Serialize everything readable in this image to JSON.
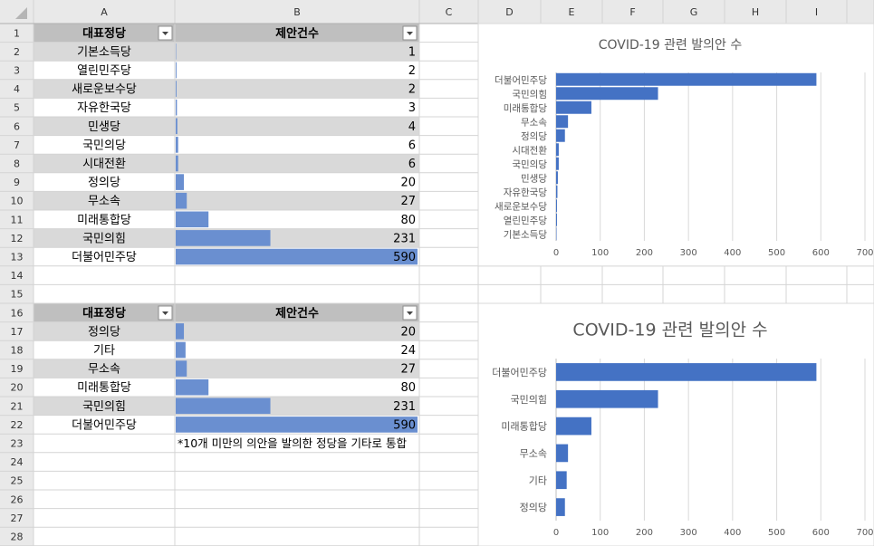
{
  "columns": [
    "A",
    "B",
    "C",
    "D",
    "E",
    "F",
    "G",
    "H",
    "I"
  ],
  "rows": [
    1,
    2,
    3,
    4,
    5,
    6,
    7,
    8,
    9,
    10,
    11,
    12,
    13,
    14,
    15,
    16,
    17,
    18,
    19,
    20,
    21,
    22,
    23,
    24,
    25,
    26,
    27,
    28
  ],
  "table1": {
    "headers": [
      "대표정당",
      "제안건수"
    ],
    "rows": [
      [
        "기본소득당",
        1
      ],
      [
        "열린민주당",
        2
      ],
      [
        "새로운보수당",
        2
      ],
      [
        "자유한국당",
        3
      ],
      [
        "민생당",
        4
      ],
      [
        "국민의당",
        6
      ],
      [
        "시대전환",
        6
      ],
      [
        "정의당",
        20
      ],
      [
        "무소속",
        27
      ],
      [
        "미래통합당",
        80
      ],
      [
        "국민의힘",
        231
      ],
      [
        "더불어민주당",
        590
      ]
    ]
  },
  "table2": {
    "headers": [
      "대표정당",
      "제안건수"
    ],
    "rows": [
      [
        "정의당",
        20
      ],
      [
        "기타",
        24
      ],
      [
        "무소속",
        27
      ],
      [
        "미래통합당",
        80
      ],
      [
        "국민의힘",
        231
      ],
      [
        "더불어민주당",
        590
      ]
    ]
  },
  "note": "*10개 미만의 의안을 발의한 정당을 기타로 통합",
  "data_bar_color": "#6a8fd0",
  "charts": [
    {
      "type": "bar",
      "title": "COVID-19 관련 발의안 수",
      "categories": [
        "기본소득당",
        "열린민주당",
        "새로운보수당",
        "자유한국당",
        "민생당",
        "국민의당",
        "시대전환",
        "정의당",
        "무소속",
        "미래통합당",
        "국민의힘",
        "더불어민주당"
      ],
      "values": [
        1,
        2,
        2,
        3,
        4,
        6,
        6,
        20,
        27,
        80,
        231,
        590
      ],
      "xlim": [
        0,
        700
      ],
      "xticks": [
        0,
        100,
        200,
        300,
        400,
        500,
        600,
        700
      ],
      "color": "#4472c4",
      "grid": true
    },
    {
      "type": "bar",
      "title": "COVID-19 관련 발의안 수",
      "categories": [
        "정의당",
        "기타",
        "무소속",
        "미래통합당",
        "국민의힘",
        "더불어민주당"
      ],
      "values": [
        20,
        24,
        27,
        80,
        231,
        590
      ],
      "xlim": [
        0,
        700
      ],
      "xticks": [
        0,
        100,
        200,
        300,
        400,
        500,
        600,
        700
      ],
      "color": "#4472c4",
      "grid": true
    }
  ]
}
